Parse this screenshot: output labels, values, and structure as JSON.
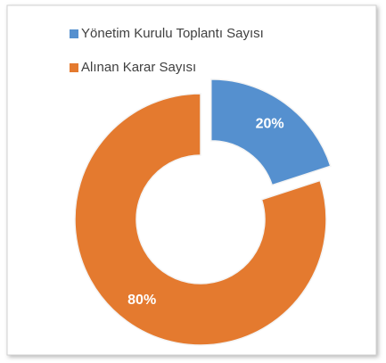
{
  "chart_data": {
    "type": "pie",
    "donut": true,
    "categories": [
      "Yönetim Kurulu Toplantı Sayısı",
      "Alınan Karar Sayısı"
    ],
    "values": [
      20,
      80
    ],
    "value_labels": [
      "20%",
      "80%"
    ],
    "colors": [
      "#5590cf",
      "#e47a2f"
    ],
    "legend": "top-left"
  }
}
